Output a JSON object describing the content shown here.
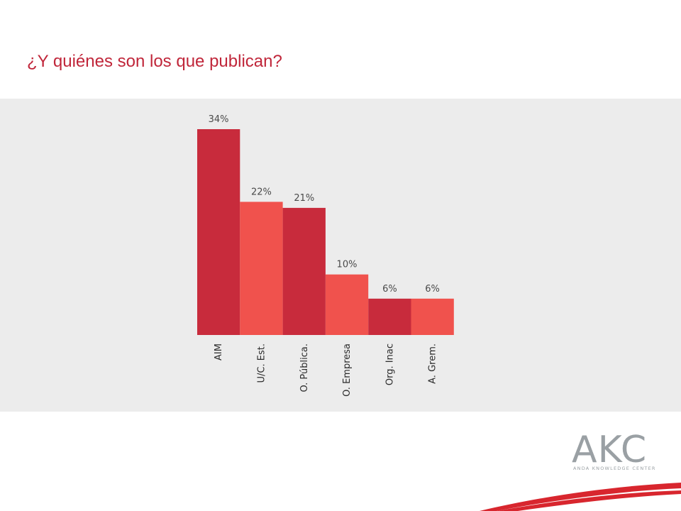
{
  "slide": {
    "title": "¿Y quiénes son los que publican?",
    "title_color": "#c0263a"
  },
  "chart_data": {
    "type": "bar",
    "title": "",
    "xlabel": "",
    "ylabel": "",
    "categories": [
      "AIM",
      "U/C. Est.",
      "O. Pública.",
      "O. Empresa",
      "Org. Inac",
      "A. Grem."
    ],
    "values": [
      34,
      22,
      21,
      10,
      6,
      6
    ],
    "data_labels": [
      "34%",
      "22%",
      "21%",
      "10%",
      "6%",
      "6%"
    ],
    "unit": "%",
    "ylim": [
      0,
      34
    ],
    "grid": false,
    "legend": "none",
    "colors": [
      "#c82b3c",
      "#f0524d",
      "#c82b3c",
      "#f0524d",
      "#c82b3c",
      "#f0524d"
    ],
    "panel_color": "#ececec"
  },
  "logo": {
    "text": "AKC",
    "subtext": "ANDA KNOWLEDGE CENTER",
    "color": "#9aa0a4",
    "accent": "#d8262e"
  }
}
